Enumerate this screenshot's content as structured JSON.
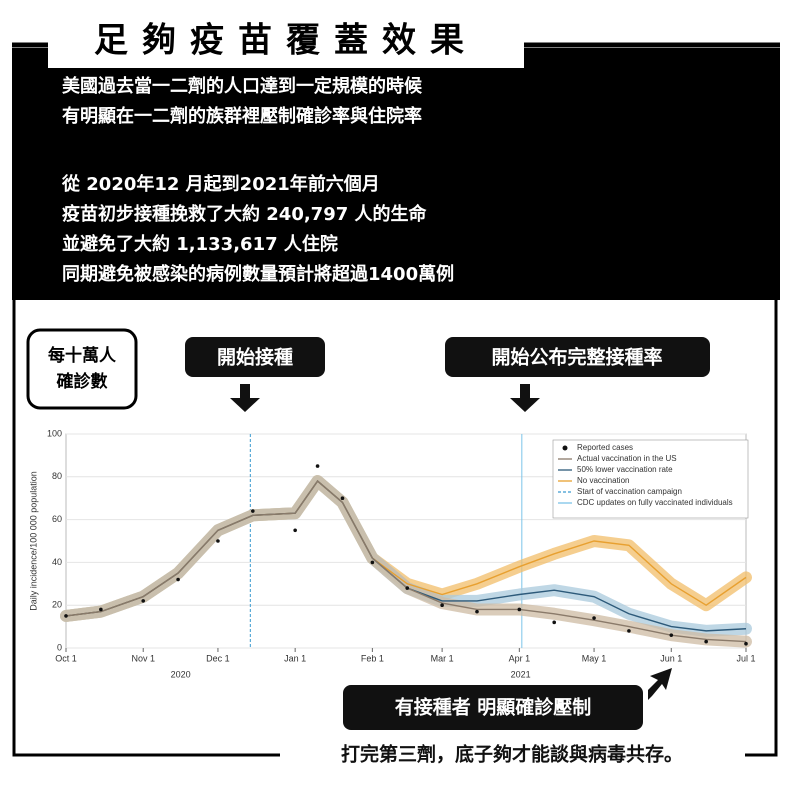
{
  "header": {
    "title": "足夠疫苗覆蓋效果",
    "lines": [
      "美國過去當一二劑的人口達到一定規模的時候",
      "有明顯在一二劑的族群裡壓制確診率與住院率",
      "從 2020年12 月起到2021年前六個月",
      "疫苗初步接種挽救了大約 240,797 人的生命",
      "並避免了大約 1,133,617 人住院",
      "同期避免被感染的病例數量預計將超過1400萬例"
    ]
  },
  "callouts": {
    "unit": [
      "每十萬人",
      "確診數"
    ],
    "start": "開始接種",
    "cdc": "開始公布完整接種率",
    "effect": "有接種者 明顯確診壓制"
  },
  "footer": "打完第三劑，底子夠才能談與病毒共存。",
  "chart_data": {
    "type": "line",
    "y_label": "Daily incidence/100 000 population",
    "x": [
      "2020-10-01",
      "2020-10-15",
      "2020-11-01",
      "2020-11-15",
      "2020-12-01",
      "2020-12-15",
      "2021-01-01",
      "2021-01-10",
      "2021-01-20",
      "2021-02-01",
      "2021-02-15",
      "2021-03-01",
      "2021-03-15",
      "2021-04-01",
      "2021-04-15",
      "2021-05-01",
      "2021-05-15",
      "2021-06-01",
      "2021-06-15",
      "2021-07-01"
    ],
    "xlim": [
      "2020-10-01",
      "2021-07-01"
    ],
    "xticks": [
      {
        "value": "2020-10-01",
        "label": "Oct 1"
      },
      {
        "value": "2020-11-01",
        "label": "Nov 1"
      },
      {
        "value": "2020-12-01",
        "label": "Dec 1"
      },
      {
        "value": "2021-01-01",
        "label": "Jan 1"
      },
      {
        "value": "2021-02-01",
        "label": "Feb 1"
      },
      {
        "value": "2021-03-01",
        "label": "Mar 1"
      },
      {
        "value": "2021-04-01",
        "label": "Apr 1"
      },
      {
        "value": "2021-05-01",
        "label": "May 1"
      },
      {
        "value": "2021-06-01",
        "label": "Jun 1"
      },
      {
        "value": "2021-07-01",
        "label": "Jul 1"
      }
    ],
    "year_labels": [
      "2020",
      "2021"
    ],
    "ylim": [
      0,
      100
    ],
    "yticks": [
      0,
      20,
      40,
      60,
      80,
      100
    ],
    "series": [
      {
        "name": "Reported cases",
        "mark": "dot",
        "color": "#111111",
        "values": [
          15,
          18,
          22,
          32,
          50,
          64,
          55,
          85,
          70,
          40,
          28,
          20,
          17,
          18,
          12,
          14,
          8,
          6,
          3,
          2
        ]
      },
      {
        "name": "Actual vaccination in the US",
        "mark": "line",
        "color": "#8a7a6a",
        "band_color": "#cdbba3",
        "values": [
          15,
          17,
          24,
          35,
          55,
          62,
          63,
          78,
          68,
          42,
          28,
          21,
          18,
          18,
          16,
          13,
          10,
          6,
          4,
          3
        ]
      },
      {
        "name": "50% lower vaccination rate",
        "mark": "line",
        "color": "#2d5a7a",
        "band_color": "#a9c9dc",
        "values": [
          15,
          17,
          24,
          35,
          55,
          62,
          63,
          78,
          68,
          42,
          28,
          22,
          22,
          25,
          27,
          24,
          16,
          10,
          8,
          9
        ]
      },
      {
        "name": "No vaccination",
        "mark": "line",
        "color": "#e8a030",
        "band_color": "#f2bd6a",
        "values": [
          15,
          17,
          24,
          35,
          55,
          62,
          63,
          78,
          68,
          42,
          30,
          25,
          30,
          38,
          44,
          50,
          48,
          30,
          20,
          33
        ]
      }
    ],
    "reference_lines": [
      {
        "name": "Start of vaccination campaign",
        "x": "2020-12-14",
        "color": "#3a9bd0",
        "dash": true
      },
      {
        "name": "CDC updates on fully vaccinated individuals",
        "x": "2021-04-02",
        "color": "#7cc4e8",
        "dash": false
      }
    ]
  }
}
